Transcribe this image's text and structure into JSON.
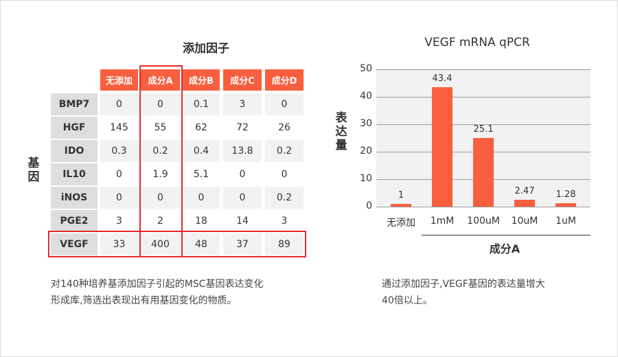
{
  "table": {
    "title": "添加因子",
    "row_axis_label": "基因",
    "columns": [
      "无添加",
      "成分A",
      "成分B",
      "成分C",
      "成分D"
    ],
    "rows": [
      {
        "gene": "BMP7",
        "values": [
          "0",
          "0",
          "0.1",
          "3",
          "0"
        ]
      },
      {
        "gene": "HGF",
        "values": [
          "145",
          "55",
          "62",
          "72",
          "26"
        ]
      },
      {
        "gene": "IDO",
        "values": [
          "0.3",
          "0.2",
          "0.4",
          "13.8",
          "0.2"
        ]
      },
      {
        "gene": "IL10",
        "values": [
          "0",
          "1.9",
          "5.1",
          "0",
          "0"
        ]
      },
      {
        "gene": "iNOS",
        "values": [
          "0",
          "0",
          "0",
          "0",
          "0.2"
        ]
      },
      {
        "gene": "PGE2",
        "values": [
          "3",
          "2",
          "18",
          "14",
          "3"
        ]
      },
      {
        "gene": "VEGF",
        "values": [
          "33",
          "400",
          "48",
          "37",
          "89"
        ]
      }
    ],
    "highlight_column": "成分A",
    "highlight_row": "VEGF",
    "highlight_color": "#e8262b",
    "header_color": "#f95f3e",
    "note_line1": "对140种培养基添加因子引起的MSC基因表达变化",
    "note_line2": "形成库,筛选出表现出有用基因变化的物质。"
  },
  "chart": {
    "title": "VEGF mRNA qPCR",
    "ylabel": "表达量",
    "yticks": [
      "0",
      "10",
      "20",
      "30",
      "40",
      "50"
    ],
    "group_label": "成分A",
    "note_line1": "通过添加因子,VEGF基因的表达量增大",
    "note_line2": "40倍以上。",
    "bar_color": "#f95f3e"
  },
  "chart_data": {
    "type": "bar",
    "title": "VEGF mRNA qPCR",
    "xlabel": "成分A",
    "ylabel": "表达量",
    "categories": [
      "无添加",
      "1mM",
      "100uM",
      "10uM",
      "1uM"
    ],
    "values": [
      1,
      43.4,
      25.1,
      2.47,
      1.28
    ],
    "data_labels": [
      "1",
      "43.4",
      "25.1",
      "2.47",
      "1.28"
    ],
    "ylim": [
      0,
      50
    ],
    "yticks": [
      0,
      10,
      20,
      30,
      40,
      50
    ],
    "grid": true,
    "legend": null
  }
}
